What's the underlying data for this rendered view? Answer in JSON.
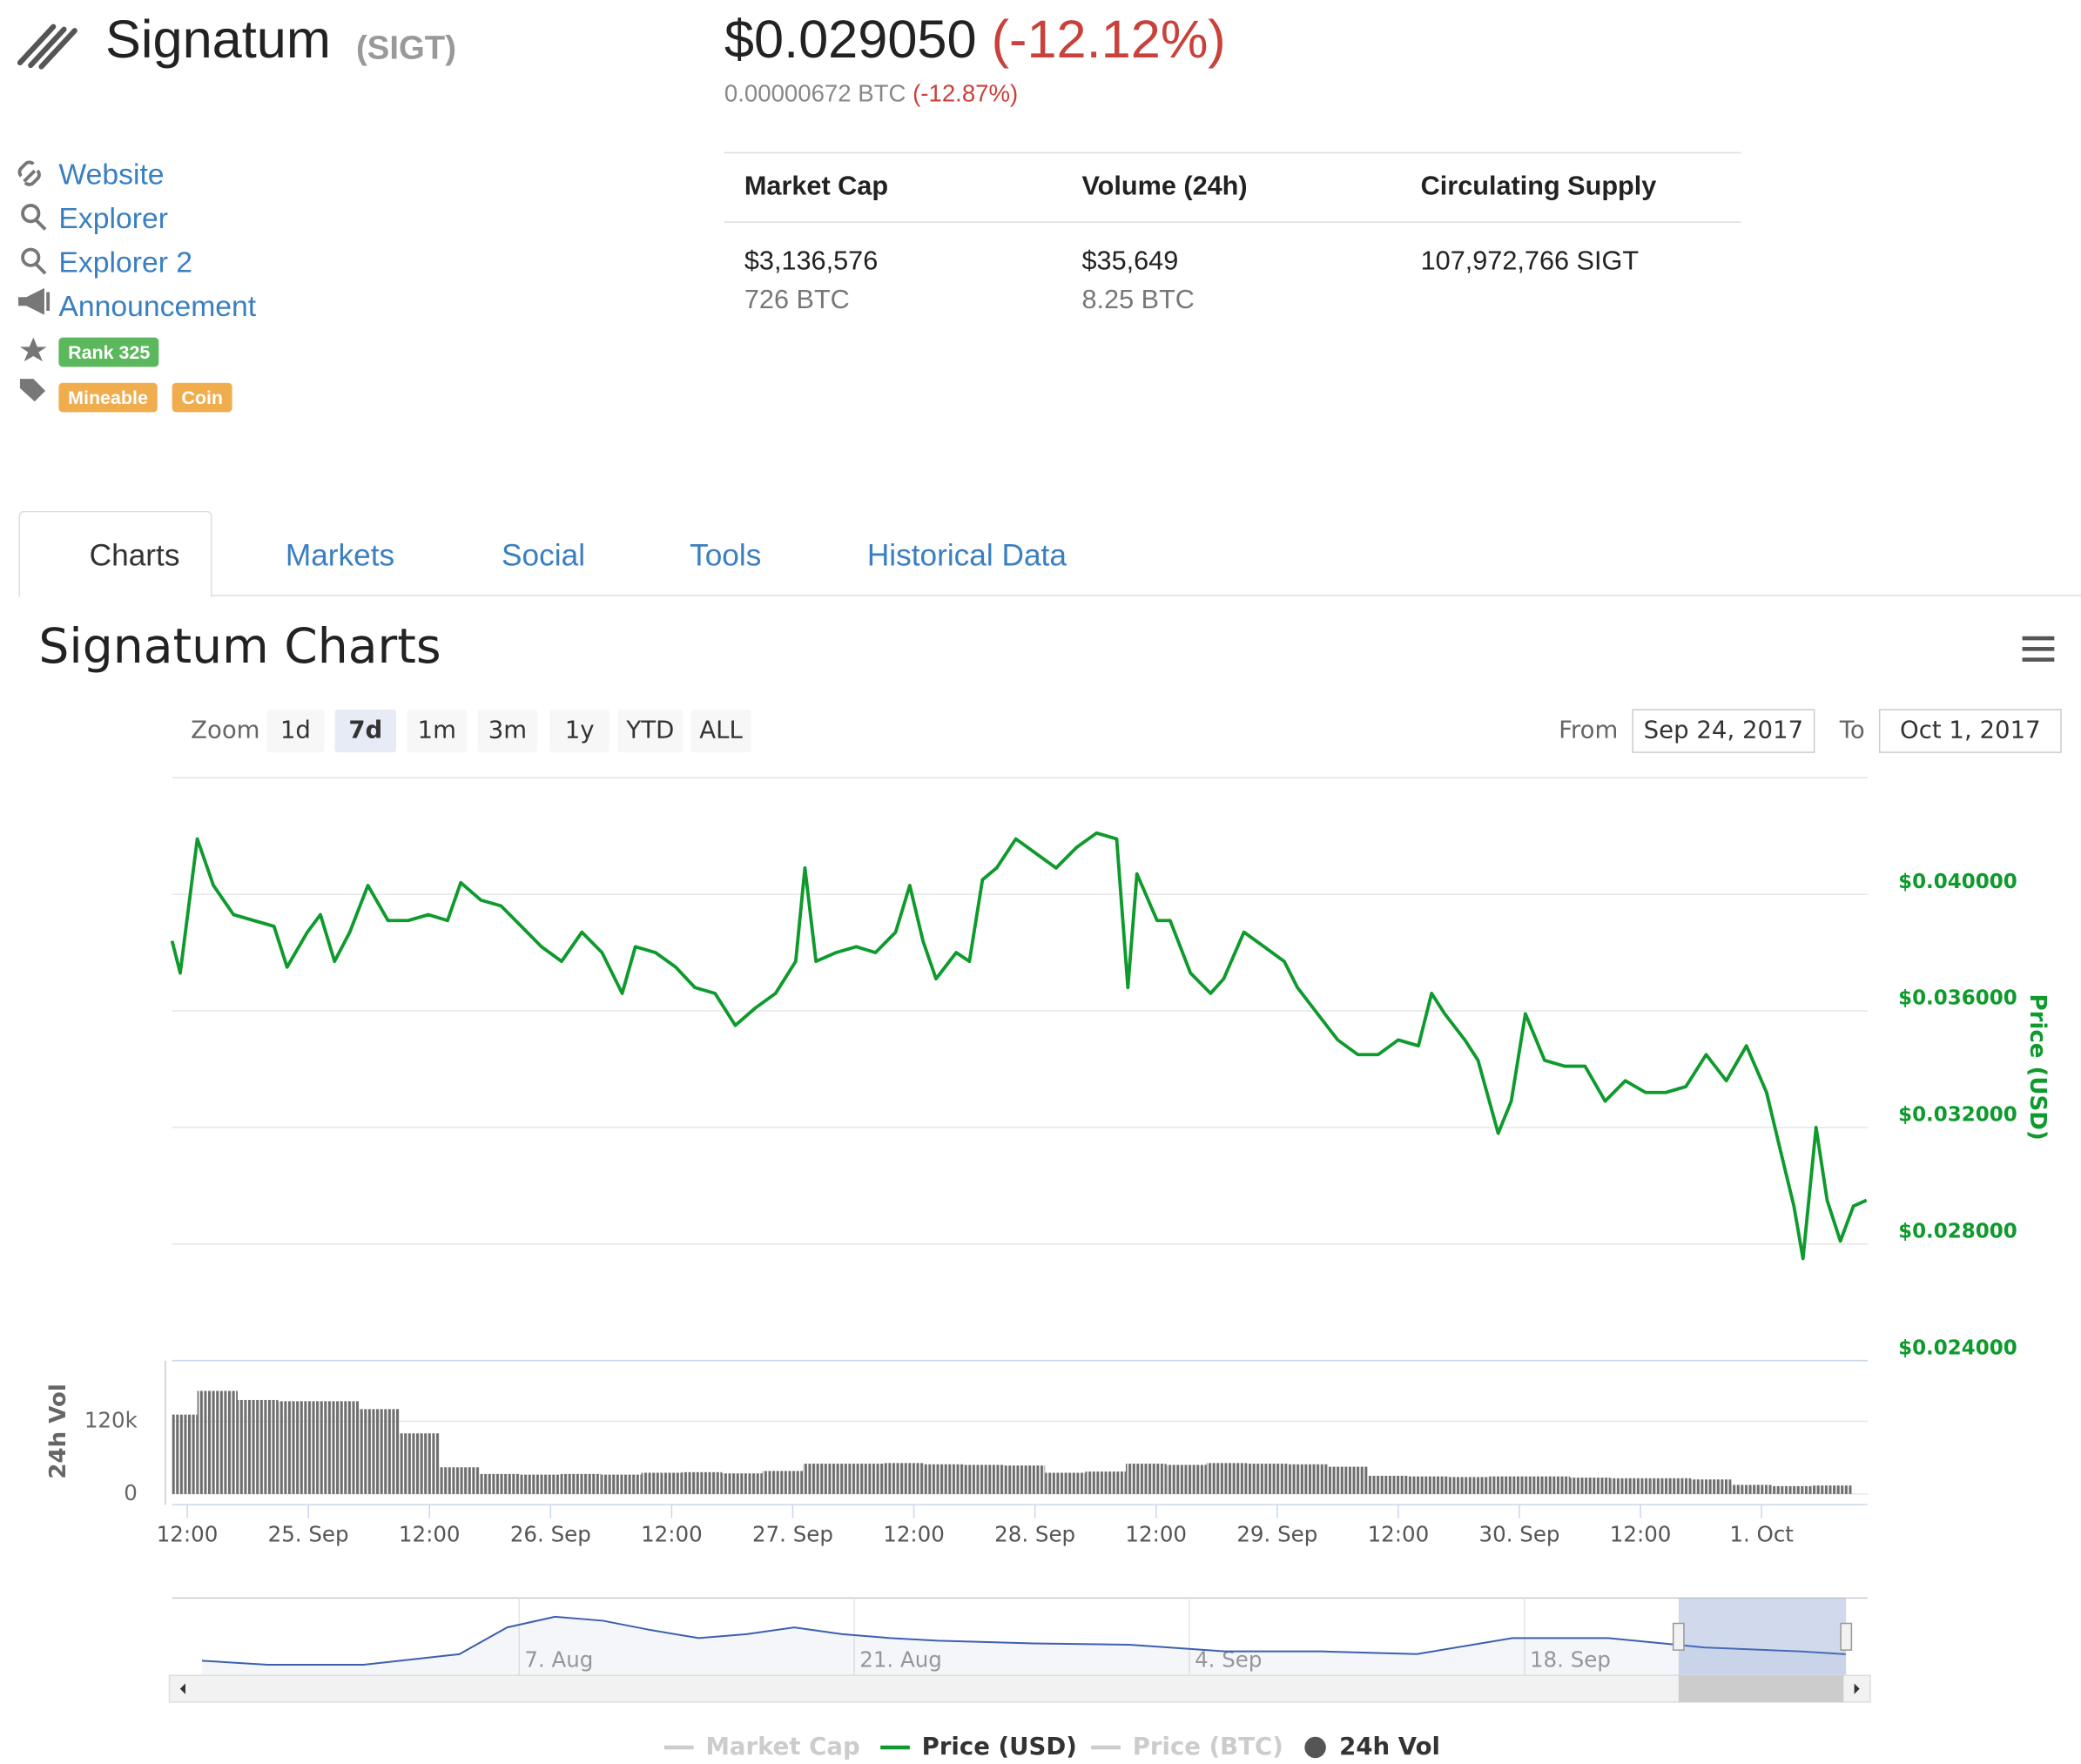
{
  "header": {
    "name": "Signatum",
    "symbol": "(SIGT)",
    "price": "$0.029050",
    "change": "(-12.12%)",
    "btc_price": "0.00000672 BTC",
    "btc_change": "(-12.87%)"
  },
  "links": [
    "Website",
    "Explorer",
    "Explorer 2",
    "Announcement"
  ],
  "badges": {
    "rank": "Rank 325",
    "tags": [
      "Mineable",
      "Coin"
    ]
  },
  "stats": {
    "headers": [
      "Market Cap",
      "Volume (24h)",
      "Circulating Supply"
    ],
    "values": [
      [
        "$3,136,576",
        "726 BTC"
      ],
      [
        "$35,649",
        "8.25 BTC"
      ],
      [
        "107,972,766 SIGT"
      ]
    ]
  },
  "tabs": [
    "Charts",
    "Markets",
    "Social",
    "Tools",
    "Historical Data"
  ],
  "chart_data": {
    "type": "line",
    "title": "Signatum Charts",
    "zoom": {
      "label": "Zoom",
      "buttons": [
        "1d",
        "7d",
        "1m",
        "3m",
        "1y",
        "YTD",
        "ALL"
      ],
      "selected": 1
    },
    "range": {
      "from_label": "From",
      "from": "Sep 24, 2017",
      "to_label": "To",
      "to": "Oct 1, 2017"
    },
    "xlim": [
      10.5,
      178.5
    ],
    "xticks": [
      {
        "value": 12,
        "label": "12:00"
      },
      {
        "value": 24,
        "label": "25. Sep"
      },
      {
        "value": 36,
        "label": "12:00"
      },
      {
        "value": 48,
        "label": "26. Sep"
      },
      {
        "value": 60,
        "label": "12:00"
      },
      {
        "value": 72,
        "label": "27. Sep"
      },
      {
        "value": 84,
        "label": "12:00"
      },
      {
        "value": 96,
        "label": "28. Sep"
      },
      {
        "value": 108,
        "label": "12:00"
      },
      {
        "value": 120,
        "label": "29. Sep"
      },
      {
        "value": 132,
        "label": "12:00"
      },
      {
        "value": 144,
        "label": "30. Sep"
      },
      {
        "value": 156,
        "label": "12:00"
      },
      {
        "value": 168,
        "label": "1. Oct"
      }
    ],
    "ylim": [
      0.024,
      0.044
    ],
    "yticks": [
      {
        "value": 0.024,
        "label": "$0.024000"
      },
      {
        "value": 0.028,
        "label": "$0.028000"
      },
      {
        "value": 0.032,
        "label": "$0.032000"
      },
      {
        "value": 0.036,
        "label": "$0.036000"
      },
      {
        "value": 0.04,
        "label": "$0.040000"
      }
    ],
    "y_label": "Price (USD)",
    "vol_ylim": [
      0,
      220000
    ],
    "vol_yticks": [
      0,
      {
        "value": 120000,
        "label": "120k"
      }
    ],
    "vol_label": "24h Vol",
    "grid": true,
    "series": [
      {
        "name": "Market Cap",
        "visible": false
      },
      {
        "name": "Price (USD)",
        "color": "#0e9a2c",
        "x": [
          10.5,
          11.3,
          13.0,
          14.6,
          16.6,
          18.6,
          20.6,
          21.9,
          23.9,
          25.2,
          26.6,
          28.1,
          29.9,
          31.9,
          33.9,
          35.9,
          37.8,
          39.1,
          41.1,
          43.1,
          45.1,
          47.1,
          49.1,
          51.1,
          53.1,
          55.1,
          56.4,
          58.4,
          60.4,
          62.3,
          64.3,
          66.3,
          68.3,
          70.3,
          72.3,
          73.2,
          74.3,
          76.3,
          78.3,
          80.2,
          82.2,
          83.6,
          84.9,
          86.2,
          88.2,
          89.5,
          90.8,
          92.2,
          94.1,
          96.1,
          98.1,
          100.1,
          102.1,
          104.1,
          105.2,
          106.1,
          108.1,
          109.4,
          111.4,
          113.4,
          114.7,
          116.7,
          118.7,
          120.7,
          122.0,
          124.0,
          126.0,
          128.0,
          130.0,
          132.0,
          134.0,
          135.3,
          136.6,
          138.6,
          139.9,
          141.9,
          143.2,
          144.6,
          146.5,
          148.5,
          150.5,
          152.5,
          154.5,
          156.5,
          158.5,
          160.5,
          162.5,
          164.5,
          166.5,
          168.5,
          169.8,
          171.2,
          172.1,
          173.4,
          174.5,
          175.8,
          177.1,
          178.4
        ],
        "values": [
          0.0384,
          0.0373,
          0.0419,
          0.0403,
          0.0393,
          0.0391,
          0.0389,
          0.0375,
          0.0387,
          0.0393,
          0.0377,
          0.0387,
          0.0403,
          0.0391,
          0.0391,
          0.0393,
          0.0391,
          0.0404,
          0.0398,
          0.0396,
          0.0389,
          0.0382,
          0.0377,
          0.0387,
          0.038,
          0.0366,
          0.0382,
          0.038,
          0.0375,
          0.0368,
          0.0366,
          0.0355,
          0.0361,
          0.0366,
          0.0377,
          0.0409,
          0.0377,
          0.038,
          0.0382,
          0.038,
          0.0387,
          0.0403,
          0.0384,
          0.0371,
          0.038,
          0.0377,
          0.0405,
          0.0409,
          0.0419,
          0.0414,
          0.0409,
          0.0416,
          0.0421,
          0.0419,
          0.0368,
          0.0407,
          0.0391,
          0.0391,
          0.0373,
          0.0366,
          0.0371,
          0.0387,
          0.0382,
          0.0377,
          0.0368,
          0.0359,
          0.035,
          0.0345,
          0.0345,
          0.035,
          0.0348,
          0.0366,
          0.0359,
          0.035,
          0.0343,
          0.0318,
          0.0329,
          0.0359,
          0.0343,
          0.0341,
          0.0341,
          0.0329,
          0.0336,
          0.0332,
          0.0332,
          0.0334,
          0.0345,
          0.0336,
          0.0348,
          0.0332,
          0.0313,
          0.0293,
          0.0275,
          0.032,
          0.0295,
          0.0281,
          0.0293,
          0.0295
        ]
      },
      {
        "name": "Price (BTC)",
        "visible": false
      },
      {
        "name": "24h Vol",
        "color": "#6e6e6e",
        "type": "bar",
        "axis": "vol",
        "x": [
          11,
          15,
          19,
          23,
          27,
          31,
          35,
          39,
          43,
          47,
          51,
          55,
          59,
          63,
          67,
          71,
          75,
          79,
          83,
          87,
          91,
          95,
          99,
          103,
          107,
          111,
          115,
          119,
          123,
          127,
          131,
          135,
          139,
          143,
          147,
          151,
          155,
          159,
          163,
          167,
          171,
          175
        ],
        "values": [
          131000,
          170000,
          155000,
          153000,
          153000,
          140000,
          100000,
          44000,
          33000,
          32000,
          33000,
          32000,
          35000,
          36000,
          34000,
          38000,
          50000,
          50000,
          51000,
          49000,
          48000,
          47000,
          35000,
          37000,
          50000,
          48000,
          51000,
          50000,
          49000,
          45000,
          30000,
          29000,
          28000,
          29000,
          29000,
          27000,
          26000,
          26000,
          24000,
          15000,
          13000,
          14000
        ]
      }
    ],
    "navigator": {
      "xlim": [
        -1500,
        200
      ],
      "ylim": [
        0,
        0.07
      ],
      "color": "#3c5fb0",
      "xticks": [
        {
          "value": -1152,
          "label": "7. Aug"
        },
        {
          "value": -816,
          "label": "21. Aug"
        },
        {
          "value": -480,
          "label": "4. Sep"
        },
        {
          "value": -144,
          "label": "18. Sep"
        }
      ],
      "x": [
        -1470,
        -1404,
        -1308,
        -1212,
        -1164,
        -1116,
        -1068,
        -1020,
        -972,
        -924,
        -876,
        -828,
        -780,
        -732,
        -636,
        -540,
        -444,
        -348,
        -252,
        -156,
        -60,
        36,
        132,
        178
      ],
      "values": [
        0.0127,
        0.0089,
        0.0089,
        0.019,
        0.0445,
        0.0547,
        0.0509,
        0.042,
        0.0344,
        0.038,
        0.0445,
        0.038,
        0.0344,
        0.0318,
        0.0293,
        0.028,
        0.0216,
        0.0216,
        0.0191,
        0.0344,
        0.0344,
        0.0255,
        0.0216,
        0.019
      ]
    }
  }
}
